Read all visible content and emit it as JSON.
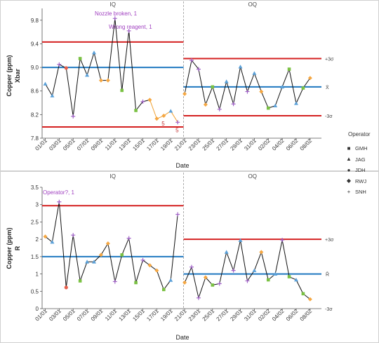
{
  "chart_data": [
    {
      "type": "line",
      "panel": "xbar",
      "ylabel_lines": [
        "Copper (ppm)",
        "Xbar"
      ],
      "xlabel": "Date",
      "ylim": [
        7.8,
        10.0
      ],
      "yticks": [
        7.8,
        8.2,
        8.6,
        9.0,
        9.4,
        9.8
      ],
      "ytick_labels": [
        "7.8",
        "8.2",
        "8.6",
        "9.0",
        "9.4",
        "9.8"
      ],
      "x_tick_labels": [
        "01/01",
        "03/01",
        "05/01",
        "07/01",
        "09/01",
        "11/01",
        "13/01",
        "15/01",
        "17/01",
        "19/01",
        "21/01",
        "23/01",
        "25/01",
        "27/01",
        "29/01",
        "31/01",
        "02/02",
        "04/02",
        "06/02",
        "08/02"
      ],
      "phases": [
        {
          "label": "IQ",
          "center": 9.0,
          "ucl": 9.43,
          "lcl": 7.99,
          "start_index": 0,
          "end_index": 19
        },
        {
          "label": "OQ",
          "center": 8.67,
          "ucl": 9.15,
          "lcl": 8.18,
          "start_index": 20,
          "end_index": 39
        }
      ],
      "limit_labels": {
        "upper": "+3σ",
        "center": "X̄",
        "lower": "-3σ"
      },
      "values": [
        8.72,
        8.52,
        9.05,
        8.99,
        8.17,
        9.15,
        8.87,
        9.25,
        8.78,
        8.78,
        9.83,
        8.61,
        9.62,
        8.27,
        8.42,
        8.45,
        8.13,
        8.18,
        8.26,
        8.07,
        8.55,
        9.12,
        8.97,
        8.37,
        8.67,
        8.29,
        8.76,
        8.38,
        9.01,
        8.59,
        8.9,
        8.59,
        8.31,
        8.35,
        8.67,
        8.97,
        8.39,
        8.65,
        8.82
      ],
      "operators": [
        "JAG",
        "JAG",
        "SNH",
        "JDH",
        "SNH",
        "GMH",
        "JAG",
        "JAG",
        "RWJ",
        "RWJ",
        "SNH",
        "GMH",
        "SNH",
        "GMH",
        "SNH",
        "RWJ",
        "RWJ",
        "RWJ",
        "JAG",
        "SNH",
        "RWJ",
        "SNH",
        "SNH",
        "RWJ",
        "GMH",
        "SNH",
        "JAG",
        "SNH",
        "JAG",
        "SNH",
        "JAG",
        "RWJ",
        "GMH",
        "JAG",
        "JAG",
        "GMH",
        "JAG",
        "GMH",
        "RWJ"
      ],
      "segments": [
        {
          "from": 15,
          "to": 19,
          "color": "#f0a030"
        }
      ],
      "annotations": [
        {
          "text": "Nozzle broken, 1",
          "index": 10,
          "color": "#a040c0"
        },
        {
          "text": "Wrong reagent, 1",
          "index": 12,
          "color": "#a040c0"
        },
        {
          "text": "5",
          "index": 17,
          "color": "#c03030"
        },
        {
          "text": "5",
          "index": 19,
          "color": "#c03030"
        }
      ]
    },
    {
      "type": "line",
      "panel": "range",
      "ylabel_lines": [
        "Copper (ppm)",
        "R"
      ],
      "xlabel": "Date",
      "ylim": [
        0,
        3.5
      ],
      "yticks": [
        0,
        0.5,
        1,
        1.5,
        2,
        2.5,
        3,
        3.5
      ],
      "ytick_labels": [
        "0",
        "0.5",
        "1",
        "1.5",
        "2",
        "2.5",
        "3",
        "3.5"
      ],
      "x_tick_labels": [
        "01/01",
        "03/01",
        "05/01",
        "07/01",
        "09/01",
        "11/01",
        "13/01",
        "15/01",
        "17/01",
        "19/01",
        "21/01",
        "23/01",
        "25/01",
        "27/01",
        "29/01",
        "31/01",
        "02/02",
        "04/02",
        "06/02",
        "08/02"
      ],
      "phases": [
        {
          "label": "IQ",
          "center": 1.5,
          "ucl": 2.97,
          "lcl": 0,
          "start_index": 0,
          "end_index": 19
        },
        {
          "label": "OQ",
          "center": 1.0,
          "ucl": 2.0,
          "lcl": 0,
          "start_index": 20,
          "end_index": 39
        }
      ],
      "limit_labels": {
        "upper": "+3σ",
        "center": "R̄",
        "lower": "-3σ"
      },
      "values": [
        2.08,
        1.92,
        3.08,
        0.61,
        2.12,
        0.8,
        1.35,
        1.35,
        1.55,
        1.88,
        0.78,
        1.55,
        2.03,
        0.75,
        1.4,
        1.25,
        1.1,
        0.55,
        0.82,
        2.72,
        0.75,
        1.2,
        0.31,
        0.9,
        0.68,
        0.72,
        1.63,
        1.1,
        1.97,
        0.8,
        1.1,
        1.63,
        0.83,
        1.0,
        1.98,
        0.92,
        0.83,
        0.43,
        0.27
      ],
      "operators": [
        "RWJ",
        "JAG",
        "SNH",
        "JDH",
        "SNH",
        "GMH",
        "JAG",
        "JAG",
        "RWJ",
        "RWJ",
        "SNH",
        "GMH",
        "SNH",
        "GMH",
        "SNH",
        "RWJ",
        "RWJ",
        "GMH",
        "JAG",
        "SNH",
        "RWJ",
        "SNH",
        "SNH",
        "RWJ",
        "GMH",
        "SNH",
        "JAG",
        "SNH",
        "JAG",
        "SNH",
        "JAG",
        "RWJ",
        "GMH",
        "JAG",
        "SNH",
        "GMH",
        "JAG",
        "GMH",
        "RWJ"
      ],
      "annotations": [
        {
          "text": "Operator?, 1",
          "index": 2,
          "color": "#a040c0"
        }
      ]
    }
  ],
  "legend": {
    "title": "Operator",
    "items": [
      {
        "label": "GMH",
        "marker": "■",
        "color": "#7ac143"
      },
      {
        "label": "JAG",
        "marker": "▲",
        "color": "#5aa0d8"
      },
      {
        "label": "JDH",
        "marker": "●",
        "color": "#e8604c"
      },
      {
        "label": "RWJ",
        "marker": "◆",
        "color": "#f5a742"
      },
      {
        "label": "SNH",
        "marker": "+",
        "color": "#a060c8"
      }
    ]
  },
  "colors": {
    "ucl_lcl": "#d42020",
    "center": "#1f78c0",
    "data_line": "#111111",
    "divider": "#999999"
  }
}
